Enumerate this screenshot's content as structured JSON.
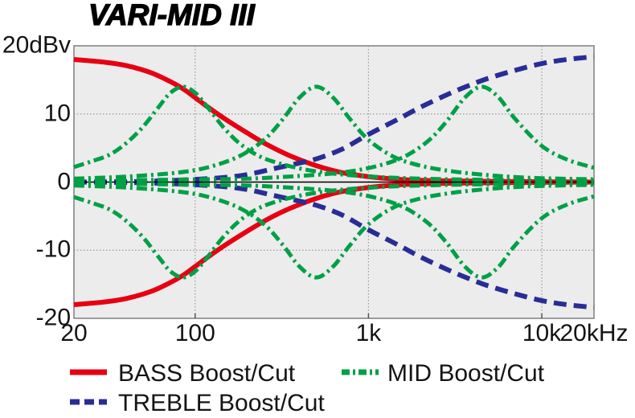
{
  "title": "VARI-MID III",
  "colors": {
    "bass": "#e60012",
    "mid": "#00a046",
    "treble": "#282d96",
    "grid": "#999999",
    "zero_axis": "#000000",
    "plot_bg": "#ececec",
    "plot_border": "#7f7f7f",
    "tick": "#555555",
    "text": "#141414"
  },
  "axis": {
    "y_unit_top_label": "20dBv",
    "y_ticks": [
      {
        "label": "20dBv",
        "value": 20
      },
      {
        "label": "10",
        "value": 10
      },
      {
        "label": "0",
        "value": 0
      },
      {
        "label": "-10",
        "value": -10
      },
      {
        "label": "-20",
        "value": -20
      }
    ],
    "x_ticks": [
      {
        "label": "20",
        "freq": 20
      },
      {
        "label": "100",
        "freq": 100
      },
      {
        "label": "1k",
        "freq": 1000
      },
      {
        "label": "10k",
        "freq": 10000
      },
      {
        "label": "20kHz",
        "freq": 20000
      }
    ]
  },
  "legend": [
    {
      "label": "BASS Boost/Cut",
      "color_key": "bass",
      "style": "solid"
    },
    {
      "label": "MID Boost/Cut",
      "color_key": "mid",
      "style": "dashdot"
    },
    {
      "label": "TREBLE Boost/Cut",
      "color_key": "treble",
      "style": "dashed"
    }
  ],
  "chart_data": {
    "type": "line",
    "title": "VARI-MID III",
    "x_scale": "log",
    "x_range": [
      20,
      20000
    ],
    "y_range": [
      -20,
      20
    ],
    "ylabel": "dBv",
    "x_gridlines": [
      100,
      1000,
      10000
    ],
    "y_gridlines": [
      10,
      -10
    ],
    "zero_line": 0,
    "legend_position": "bottom",
    "series": [
      {
        "name": "bass-boost",
        "color_key": "bass",
        "dash": "solid",
        "width": 6,
        "z": 1,
        "points": [
          [
            20,
            18
          ],
          [
            30,
            17.6
          ],
          [
            40,
            17.1
          ],
          [
            55,
            16.1
          ],
          [
            70,
            14.9
          ],
          [
            85,
            13.7
          ],
          [
            100,
            12.4
          ],
          [
            120,
            10.9
          ],
          [
            150,
            9.2
          ],
          [
            200,
            7.2
          ],
          [
            260,
            5.5
          ],
          [
            350,
            3.9
          ],
          [
            500,
            2.4
          ],
          [
            700,
            1.4
          ],
          [
            1000,
            0.8
          ],
          [
            1500,
            0.4
          ],
          [
            2500,
            0.2
          ],
          [
            5000,
            0.1
          ],
          [
            20000,
            0
          ]
        ]
      },
      {
        "name": "bass-cut",
        "color_key": "bass",
        "dash": "solid",
        "width": 6,
        "z": 1,
        "points": [
          [
            20,
            -18
          ],
          [
            30,
            -17.6
          ],
          [
            40,
            -17.1
          ],
          [
            55,
            -16.1
          ],
          [
            70,
            -14.9
          ],
          [
            85,
            -13.7
          ],
          [
            100,
            -12.4
          ],
          [
            120,
            -10.9
          ],
          [
            150,
            -9.2
          ],
          [
            200,
            -7.2
          ],
          [
            260,
            -5.5
          ],
          [
            350,
            -3.9
          ],
          [
            500,
            -2.4
          ],
          [
            700,
            -1.4
          ],
          [
            1000,
            -0.8
          ],
          [
            1500,
            -0.4
          ],
          [
            2500,
            -0.2
          ],
          [
            5000,
            -0.1
          ],
          [
            20000,
            0
          ]
        ]
      },
      {
        "name": "treble-boost",
        "color_key": "treble",
        "dash": "dashed",
        "width": 6,
        "z": 1,
        "points": [
          [
            20,
            0
          ],
          [
            50,
            0.1
          ],
          [
            100,
            0.4
          ],
          [
            150,
            0.7
          ],
          [
            200,
            1.1
          ],
          [
            300,
            2.1
          ],
          [
            400,
            2.8
          ],
          [
            500,
            3.4
          ],
          [
            700,
            4.8
          ],
          [
            1000,
            7
          ],
          [
            1500,
            9.3
          ],
          [
            2000,
            11
          ],
          [
            3000,
            13.1
          ],
          [
            4000,
            14.4
          ],
          [
            5000,
            15.3
          ],
          [
            7000,
            16.4
          ],
          [
            10000,
            17.4
          ],
          [
            14000,
            18
          ],
          [
            20000,
            18.4
          ]
        ]
      },
      {
        "name": "treble-cut",
        "color_key": "treble",
        "dash": "dashed",
        "width": 6,
        "z": 1,
        "points": [
          [
            20,
            0
          ],
          [
            50,
            -0.1
          ],
          [
            100,
            -0.4
          ],
          [
            150,
            -0.7
          ],
          [
            200,
            -1.1
          ],
          [
            300,
            -2.1
          ],
          [
            400,
            -2.8
          ],
          [
            500,
            -3.4
          ],
          [
            700,
            -4.8
          ],
          [
            1000,
            -7
          ],
          [
            1500,
            -9.3
          ],
          [
            2000,
            -11
          ],
          [
            3000,
            -13.1
          ],
          [
            4000,
            -14.4
          ],
          [
            5000,
            -15.3
          ],
          [
            7000,
            -16.4
          ],
          [
            10000,
            -17.4
          ],
          [
            14000,
            -18
          ],
          [
            20000,
            -18.4
          ]
        ]
      },
      {
        "name": "mid-boost-85hz",
        "color_key": "mid",
        "dash": "dashdot",
        "width": 5,
        "z": 3,
        "points": [
          [
            20,
            2.2
          ],
          [
            25,
            3
          ],
          [
            32,
            4
          ],
          [
            40,
            5.7
          ],
          [
            50,
            8.1
          ],
          [
            62,
            11.1
          ],
          [
            72,
            13.1
          ],
          [
            85,
            14
          ],
          [
            100,
            13.1
          ],
          [
            118,
            11
          ],
          [
            145,
            8.1
          ],
          [
            180,
            5.7
          ],
          [
            230,
            3.9
          ],
          [
            300,
            2.8
          ],
          [
            420,
            1.9
          ],
          [
            600,
            1.3
          ],
          [
            900,
            0.9
          ],
          [
            1500,
            0.6
          ],
          [
            3000,
            0.4
          ],
          [
            6000,
            0.3
          ],
          [
            12000,
            0.2
          ],
          [
            20000,
            0.2
          ]
        ]
      },
      {
        "name": "mid-cut-85hz",
        "color_key": "mid",
        "dash": "dashdot",
        "width": 5,
        "z": 3,
        "points": [
          [
            20,
            -2.2
          ],
          [
            25,
            -3
          ],
          [
            32,
            -4
          ],
          [
            40,
            -5.7
          ],
          [
            50,
            -8.1
          ],
          [
            62,
            -11.1
          ],
          [
            72,
            -13.1
          ],
          [
            85,
            -14
          ],
          [
            100,
            -13.1
          ],
          [
            118,
            -11
          ],
          [
            145,
            -8.1
          ],
          [
            180,
            -5.7
          ],
          [
            230,
            -3.9
          ],
          [
            300,
            -2.8
          ],
          [
            420,
            -1.9
          ],
          [
            600,
            -1.3
          ],
          [
            900,
            -0.9
          ],
          [
            1500,
            -0.6
          ],
          [
            3000,
            -0.4
          ],
          [
            6000,
            -0.3
          ],
          [
            12000,
            -0.2
          ],
          [
            20000,
            -0.2
          ]
        ]
      },
      {
        "name": "mid-boost-500hz",
        "color_key": "mid",
        "dash": "dashdot",
        "width": 5,
        "z": 3,
        "points": [
          [
            20,
            0.5
          ],
          [
            40,
            0.8
          ],
          [
            80,
            1.4
          ],
          [
            120,
            2.2
          ],
          [
            180,
            3.8
          ],
          [
            250,
            6.2
          ],
          [
            320,
            9.2
          ],
          [
            400,
            12.4
          ],
          [
            500,
            14
          ],
          [
            625,
            12.4
          ],
          [
            780,
            9.3
          ],
          [
            1000,
            6.2
          ],
          [
            1400,
            3.7
          ],
          [
            2000,
            2.4
          ],
          [
            3000,
            1.6
          ],
          [
            5000,
            1
          ],
          [
            9000,
            0.6
          ],
          [
            20000,
            0.4
          ]
        ]
      },
      {
        "name": "mid-cut-500hz",
        "color_key": "mid",
        "dash": "dashdot",
        "width": 5,
        "z": 3,
        "points": [
          [
            20,
            -0.5
          ],
          [
            40,
            -0.8
          ],
          [
            80,
            -1.4
          ],
          [
            120,
            -2.2
          ],
          [
            180,
            -3.8
          ],
          [
            250,
            -6.2
          ],
          [
            320,
            -9.2
          ],
          [
            400,
            -12.4
          ],
          [
            500,
            -14
          ],
          [
            625,
            -12.4
          ],
          [
            780,
            -9.3
          ],
          [
            1000,
            -6.2
          ],
          [
            1400,
            -3.7
          ],
          [
            2000,
            -2.4
          ],
          [
            3000,
            -1.6
          ],
          [
            5000,
            -1
          ],
          [
            9000,
            -0.6
          ],
          [
            20000,
            -0.4
          ]
        ]
      },
      {
        "name": "mid-boost-4500hz",
        "color_key": "mid",
        "dash": "dashdot",
        "width": 5,
        "z": 3,
        "points": [
          [
            20,
            0.2
          ],
          [
            50,
            0.3
          ],
          [
            100,
            0.4
          ],
          [
            200,
            0.5
          ],
          [
            400,
            0.9
          ],
          [
            700,
            1.4
          ],
          [
            1100,
            2.3
          ],
          [
            1600,
            3.7
          ],
          [
            2200,
            6
          ],
          [
            2800,
            8.8
          ],
          [
            3600,
            12.4
          ],
          [
            4500,
            14
          ],
          [
            5600,
            12.5
          ],
          [
            7000,
            9.3
          ],
          [
            10000,
            5.3
          ],
          [
            14000,
            3.3
          ],
          [
            20000,
            2.1
          ]
        ]
      },
      {
        "name": "mid-cut-4500hz",
        "color_key": "mid",
        "dash": "dashdot",
        "width": 5,
        "z": 3,
        "points": [
          [
            20,
            -0.2
          ],
          [
            50,
            -0.3
          ],
          [
            100,
            -0.4
          ],
          [
            200,
            -0.5
          ],
          [
            400,
            -0.9
          ],
          [
            700,
            -1.4
          ],
          [
            1100,
            -2.3
          ],
          [
            1600,
            -3.7
          ],
          [
            2200,
            -6
          ],
          [
            2800,
            -8.8
          ],
          [
            3600,
            -12.4
          ],
          [
            4500,
            -14
          ],
          [
            5600,
            -12.5
          ],
          [
            7000,
            -9.3
          ],
          [
            10000,
            -5.3
          ],
          [
            14000,
            -3.3
          ],
          [
            20000,
            -2.1
          ]
        ]
      }
    ]
  }
}
